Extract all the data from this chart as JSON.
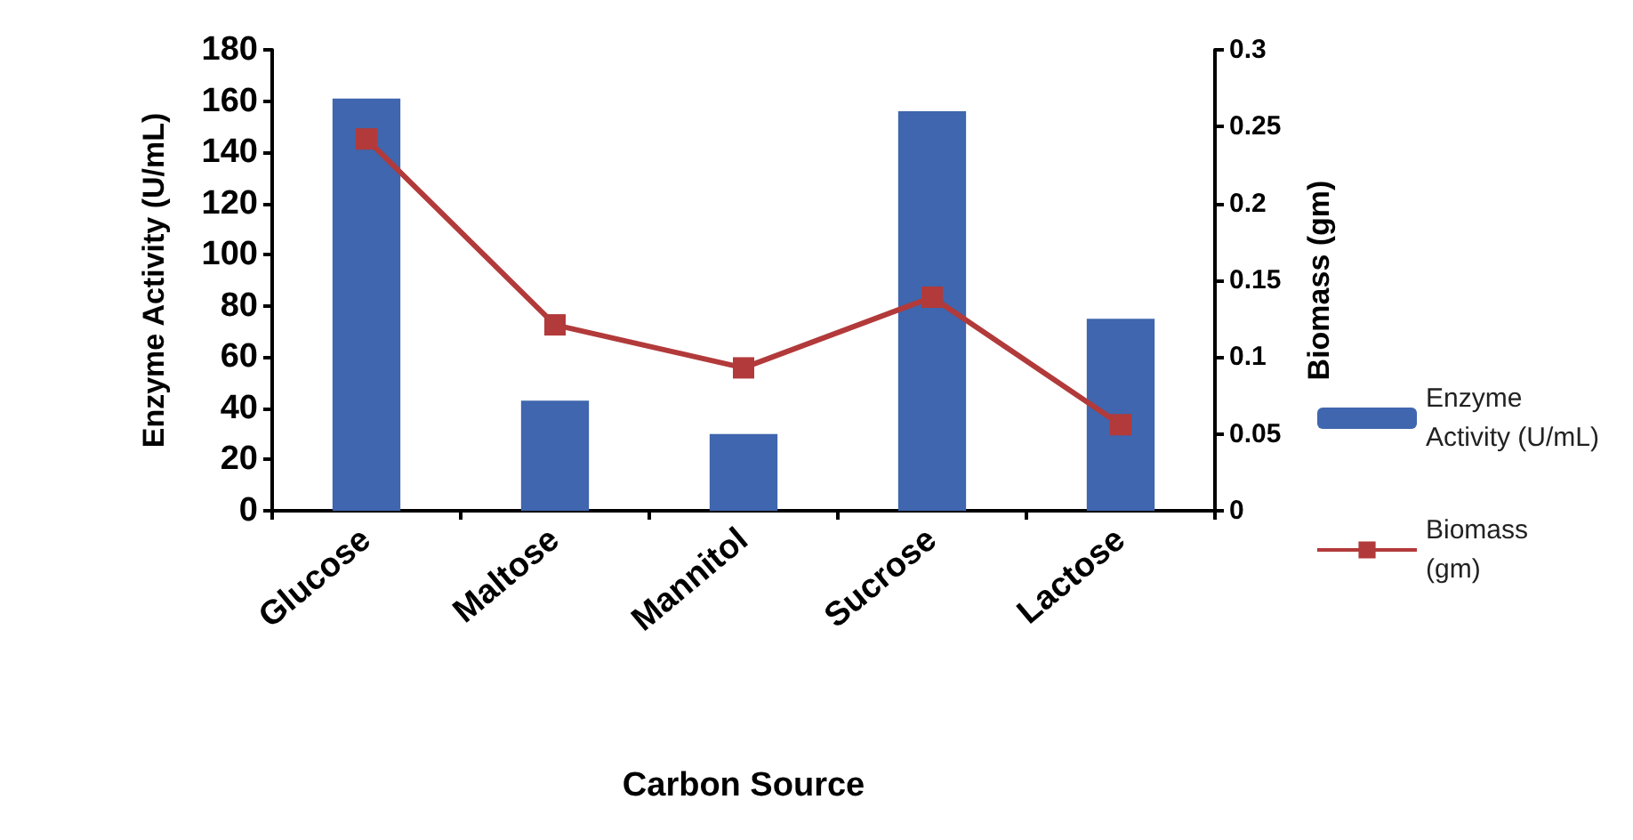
{
  "chart_data": {
    "type": "bar",
    "xlabel": "Carbon Source",
    "ylabel": "Enzyme Activity (U/mL)",
    "y2label": "Biomass (gm)",
    "categories": [
      "Glucose",
      "Maltose",
      "Mannitol",
      "Sucrose",
      "Lactose"
    ],
    "series": [
      {
        "name": "Enzyme Activity (U/mL)",
        "color": "#3f66ae",
        "values": [
          161,
          43,
          30,
          156,
          75
        ]
      },
      {
        "name": "Biomass (gm)",
        "type": "line",
        "axis": "y2",
        "color": "#b23a3a",
        "marker": "square",
        "values": [
          0.242,
          0.121,
          0.093,
          0.139,
          0.056
        ]
      }
    ],
    "ylim": [
      0,
      180
    ],
    "yticks": [
      0,
      20,
      40,
      60,
      80,
      100,
      120,
      140,
      160,
      180
    ],
    "y2lim": [
      0,
      0.3
    ],
    "y2ticks": [
      0,
      0.05,
      0.1,
      0.15,
      0.2,
      0.25,
      0.3
    ],
    "grid": false,
    "legend": "right"
  }
}
